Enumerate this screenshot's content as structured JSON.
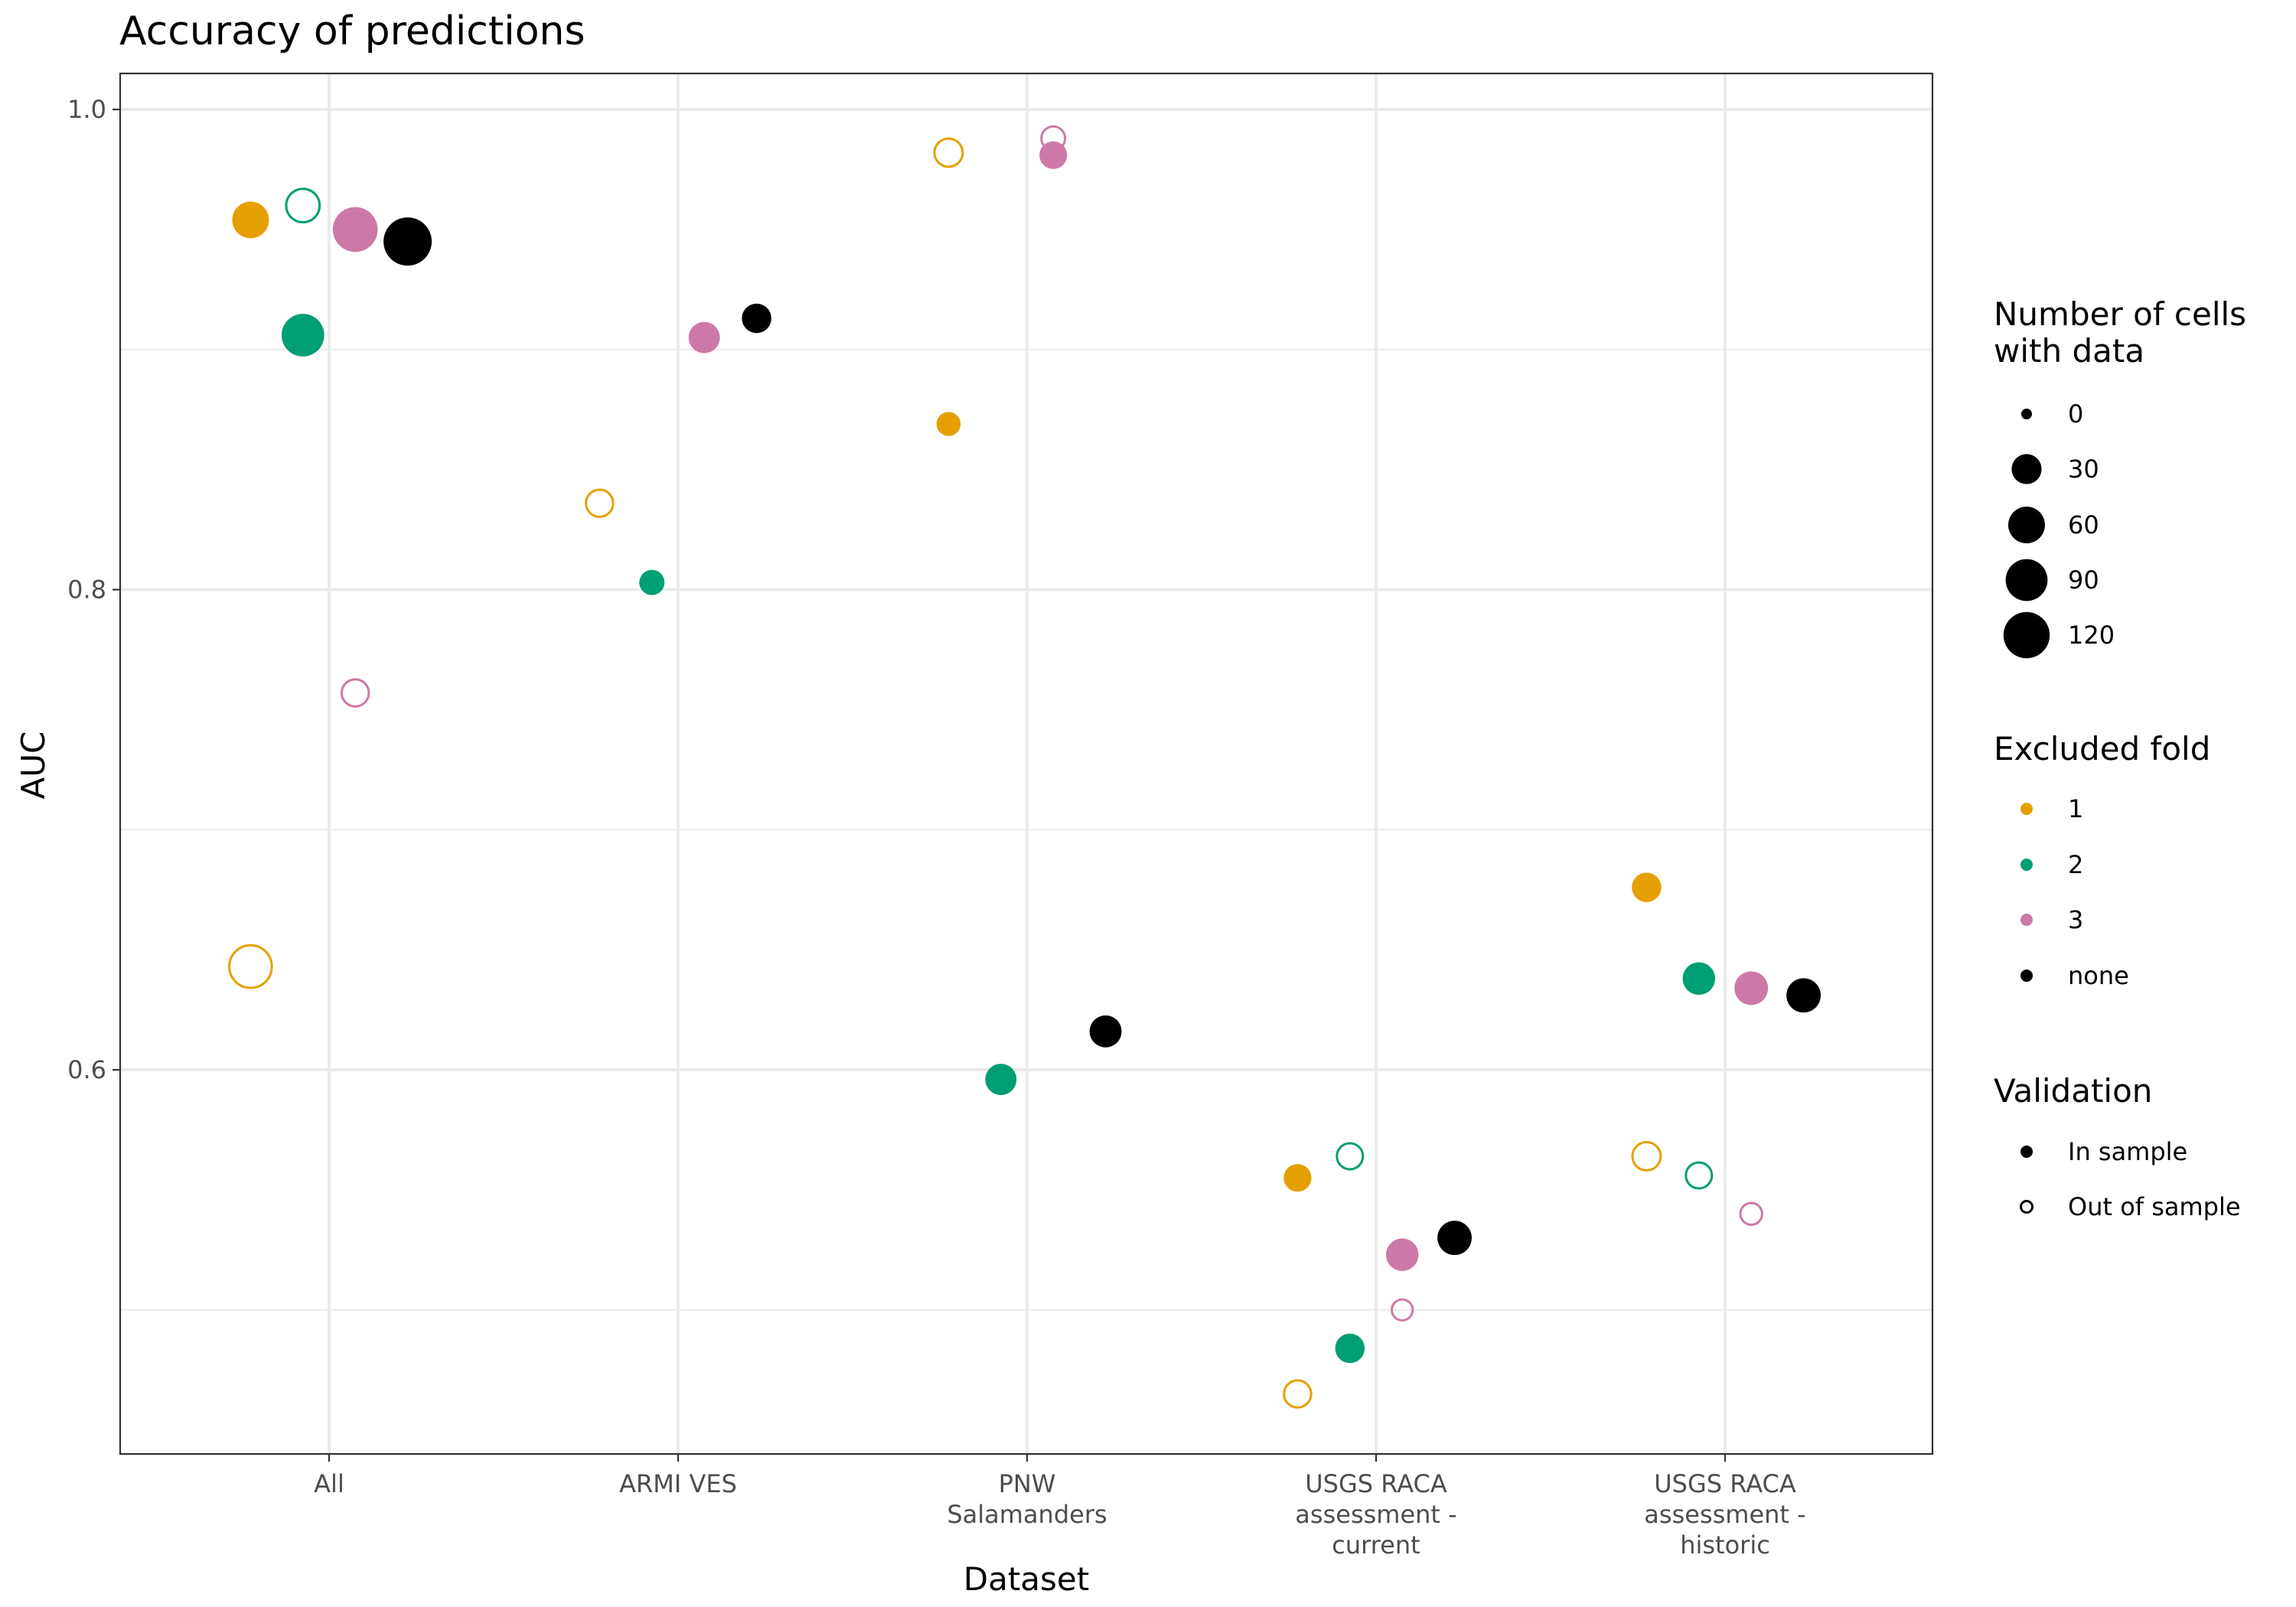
{
  "chart_data": {
    "type": "scatter",
    "title": "Accuracy of predictions",
    "xlabel": "Dataset",
    "ylabel": "AUC",
    "ylim": [
      0.44,
      1.015
    ],
    "yticks": [
      {
        "value": 0.6,
        "label": "0.6"
      },
      {
        "value": 0.8,
        "label": "0.8"
      },
      {
        "value": 1.0,
        "label": "1.0"
      }
    ],
    "y_minor_gridlines": [
      0.5,
      0.7,
      0.9
    ],
    "grid": true,
    "categories": [
      {
        "name": "All",
        "label_lines": [
          "All"
        ]
      },
      {
        "name": "ARMI VES",
        "label_lines": [
          "ARMI VES"
        ]
      },
      {
        "name": "PNW Salamanders",
        "label_lines": [
          "PNW",
          "Salamanders"
        ]
      },
      {
        "name": "USGS RACA assessment - current",
        "label_lines": [
          "USGS RACA",
          "assessment -",
          "current"
        ]
      },
      {
        "name": "USGS RACA assessment - historic",
        "label_lines": [
          "USGS RACA",
          "assessment -",
          "historic"
        ]
      }
    ],
    "fold_colors": {
      "1": "#E69F00",
      "2": "#009E73",
      "3": "#CC79A7",
      "none": "#000000"
    },
    "fold_offsets": {
      "1": -0.225,
      "2": -0.075,
      "3": 0.075,
      "none": 0.225
    },
    "points": [
      {
        "category": "All",
        "fold": "1",
        "validation": "In sample",
        "cells": 60,
        "auc": 0.954
      },
      {
        "category": "All",
        "fold": "1",
        "validation": "Out of sample",
        "cells": 110,
        "auc": 0.643
      },
      {
        "category": "All",
        "fold": "2",
        "validation": "In sample",
        "cells": 95,
        "auc": 0.906
      },
      {
        "category": "All",
        "fold": "2",
        "validation": "Out of sample",
        "cells": 55,
        "auc": 0.96
      },
      {
        "category": "All",
        "fold": "3",
        "validation": "In sample",
        "cells": 110,
        "auc": 0.95
      },
      {
        "category": "All",
        "fold": "3",
        "validation": "Out of sample",
        "cells": 28,
        "auc": 0.757
      },
      {
        "category": "All",
        "fold": "none",
        "validation": "In sample",
        "cells": 135,
        "auc": 0.945
      },
      {
        "category": "ARMI VES",
        "fold": "1",
        "validation": "Out of sample",
        "cells": 28,
        "auc": 0.836
      },
      {
        "category": "ARMI VES",
        "fold": "2",
        "validation": "In sample",
        "cells": 15,
        "auc": 0.803
      },
      {
        "category": "ARMI VES",
        "fold": "3",
        "validation": "In sample",
        "cells": 35,
        "auc": 0.905
      },
      {
        "category": "ARMI VES",
        "fold": "none",
        "validation": "In sample",
        "cells": 28,
        "auc": 0.913
      },
      {
        "category": "PNW Salamanders",
        "fold": "1",
        "validation": "In sample",
        "cells": 12,
        "auc": 0.869
      },
      {
        "category": "PNW Salamanders",
        "fold": "1",
        "validation": "Out of sample",
        "cells": 32,
        "auc": 0.982
      },
      {
        "category": "PNW Salamanders",
        "fold": "2",
        "validation": "In sample",
        "cells": 35,
        "auc": 0.596
      },
      {
        "category": "PNW Salamanders",
        "fold": "3",
        "validation": "In sample",
        "cells": 22,
        "auc": 0.981
      },
      {
        "category": "PNW Salamanders",
        "fold": "3",
        "validation": "Out of sample",
        "cells": 17,
        "auc": 0.988
      },
      {
        "category": "PNW Salamanders",
        "fold": "none",
        "validation": "In sample",
        "cells": 38,
        "auc": 0.616
      },
      {
        "category": "USGS RACA assessment - current",
        "fold": "1",
        "validation": "In sample",
        "cells": 22,
        "auc": 0.555
      },
      {
        "category": "USGS RACA assessment - current",
        "fold": "1",
        "validation": "Out of sample",
        "cells": 28,
        "auc": 0.465
      },
      {
        "category": "USGS RACA assessment - current",
        "fold": "2",
        "validation": "In sample",
        "cells": 28,
        "auc": 0.484
      },
      {
        "category": "USGS RACA assessment - current",
        "fold": "2",
        "validation": "Out of sample",
        "cells": 24,
        "auc": 0.564
      },
      {
        "category": "USGS RACA assessment - current",
        "fold": "3",
        "validation": "In sample",
        "cells": 40,
        "auc": 0.523
      },
      {
        "category": "USGS RACA assessment - current",
        "fold": "3",
        "validation": "Out of sample",
        "cells": 10,
        "auc": 0.5
      },
      {
        "category": "USGS RACA assessment - current",
        "fold": "none",
        "validation": "In sample",
        "cells": 48,
        "auc": 0.53
      },
      {
        "category": "USGS RACA assessment - historic",
        "fold": "1",
        "validation": "In sample",
        "cells": 28,
        "auc": 0.676
      },
      {
        "category": "USGS RACA assessment - historic",
        "fold": "1",
        "validation": "Out of sample",
        "cells": 32,
        "auc": 0.564
      },
      {
        "category": "USGS RACA assessment - historic",
        "fold": "2",
        "validation": "In sample",
        "cells": 40,
        "auc": 0.638
      },
      {
        "category": "USGS RACA assessment - historic",
        "fold": "2",
        "validation": "Out of sample",
        "cells": 24,
        "auc": 0.556
      },
      {
        "category": "USGS RACA assessment - historic",
        "fold": "3",
        "validation": "In sample",
        "cells": 45,
        "auc": 0.634
      },
      {
        "category": "USGS RACA assessment - historic",
        "fold": "3",
        "validation": "Out of sample",
        "cells": 12,
        "auc": 0.54
      },
      {
        "category": "USGS RACA assessment - historic",
        "fold": "none",
        "validation": "In sample",
        "cells": 48,
        "auc": 0.631
      }
    ],
    "legend": {
      "placement": "right",
      "size": {
        "title_lines": [
          "Number of cells",
          "with data"
        ],
        "entries": [
          {
            "label": "0",
            "cells": 0
          },
          {
            "label": "30",
            "cells": 30
          },
          {
            "label": "60",
            "cells": 60
          },
          {
            "label": "90",
            "cells": 90
          },
          {
            "label": "120",
            "cells": 120
          }
        ]
      },
      "fold": {
        "title": "Excluded fold",
        "entries": [
          {
            "label": "1",
            "key": "1"
          },
          {
            "label": "2",
            "key": "2"
          },
          {
            "label": "3",
            "key": "3"
          },
          {
            "label": "none",
            "key": "none"
          }
        ]
      },
      "validation": {
        "title": "Validation",
        "entries": [
          {
            "label": "In sample",
            "filled": true
          },
          {
            "label": "Out of sample",
            "filled": false
          }
        ]
      }
    }
  }
}
